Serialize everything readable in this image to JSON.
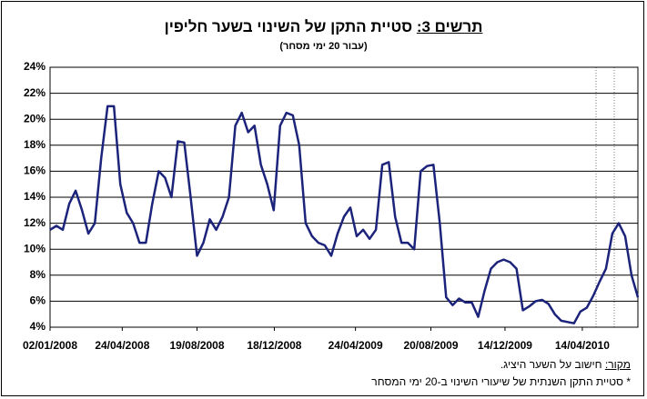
{
  "chart_data": {
    "type": "line",
    "title_label": "תרשים 3:",
    "title": "סטיית התקן של השינוי בשער חליפין",
    "subtitle": "(עבור 20 ימי מסחר)",
    "source_label": "מקור:",
    "source": "חישוב על השער היציג.",
    "footnote": "* סטיית התקן השנתית של שיעורי השינוי ב-20 ימי המסחר",
    "x": [
      "02/01/2008",
      "12/01/2008",
      "22/01/2008",
      "01/02/2008",
      "11/02/2008",
      "21/02/2008",
      "02/03/2008",
      "12/03/2008",
      "22/03/2008",
      "01/04/2008",
      "11/04/2008",
      "21/04/2008",
      "01/05/2008",
      "11/05/2008",
      "21/05/2008",
      "31/05/2008",
      "10/06/2008",
      "20/06/2008",
      "30/06/2008",
      "10/07/2008",
      "20/07/2008",
      "30/07/2008",
      "09/08/2008",
      "19/08/2008",
      "29/08/2008",
      "08/09/2008",
      "18/09/2008",
      "28/09/2008",
      "08/10/2008",
      "18/10/2008",
      "28/10/2008",
      "07/11/2008",
      "17/11/2008",
      "27/11/2008",
      "07/12/2008",
      "17/12/2008",
      "27/12/2008",
      "06/01/2009",
      "16/01/2009",
      "26/01/2009",
      "05/02/2009",
      "15/02/2009",
      "25/02/2009",
      "07/03/2009",
      "17/03/2009",
      "27/03/2009",
      "06/04/2009",
      "16/04/2009",
      "26/04/2009",
      "06/05/2009",
      "16/05/2009",
      "26/05/2009",
      "05/06/2009",
      "15/06/2009",
      "25/06/2009",
      "05/07/2009",
      "15/07/2009",
      "25/07/2009",
      "04/08/2009",
      "14/08/2009",
      "24/08/2009",
      "03/09/2009",
      "13/09/2009",
      "23/09/2009",
      "03/10/2009",
      "13/10/2009",
      "23/10/2009",
      "02/11/2009",
      "12/11/2009",
      "22/11/2009",
      "02/12/2009",
      "12/12/2009",
      "22/12/2009",
      "01/01/2010",
      "11/01/2010",
      "21/01/2010",
      "31/01/2010",
      "10/02/2010",
      "20/02/2010",
      "02/03/2010",
      "12/03/2010",
      "22/03/2010",
      "01/04/2010",
      "11/04/2010",
      "21/04/2010",
      "01/05/2010",
      "11/05/2010",
      "21/05/2010",
      "31/05/2010",
      "10/06/2010",
      "20/06/2010",
      "30/06/2010",
      "10/07/2010"
    ],
    "series": [
      {
        "color": "#1c237a",
        "values": [
          11.5,
          11.8,
          11.5,
          13.5,
          14.5,
          13,
          11.2,
          12,
          17,
          21,
          21,
          15,
          12.8,
          12,
          10.5,
          10.5,
          13.5,
          16,
          15.5,
          14,
          18.3,
          18.2,
          14,
          9.5,
          10.5,
          12.3,
          11.5,
          12.5,
          14,
          19.5,
          20.5,
          19,
          19.5,
          16.5,
          15,
          13,
          19.5,
          20.5,
          20.3,
          18,
          12,
          11,
          10.5,
          10.3,
          9.5,
          11.2,
          12.5,
          13.2,
          11,
          11.5,
          10.8,
          11.5,
          16.5,
          16.7,
          12.5,
          10.5,
          10.5,
          10,
          16,
          16.4,
          16.5,
          12,
          6.3,
          5.7,
          6.2,
          5.9,
          5.9,
          4.8,
          6.8,
          8.5,
          9,
          9.2,
          9,
          8.5,
          5.3,
          5.6,
          6,
          6.1,
          5.8,
          5,
          4.5,
          4.4,
          4.3,
          5.2,
          5.5,
          6.4,
          7.5,
          8.5,
          11.2,
          12,
          11,
          8,
          6.3
        ]
      }
    ],
    "xlim": [
      "02/01/2008",
      "10/07/2010"
    ],
    "xticks": [
      "02/01/2008",
      "24/04/2008",
      "19/08/2008",
      "18/12/2008",
      "24/04/2009",
      "20/08/2009",
      "14/12/2009",
      "14/04/2010"
    ],
    "ylim": [
      4,
      24
    ],
    "yticks": [
      {
        "value": 4,
        "label": "4%"
      },
      {
        "value": 6,
        "label": "6%"
      },
      {
        "value": 8,
        "label": "8%"
      },
      {
        "value": 10,
        "label": "10%"
      },
      {
        "value": 12,
        "label": "12%"
      },
      {
        "value": 14,
        "label": "14%"
      },
      {
        "value": 16,
        "label": "16%"
      },
      {
        "value": 18,
        "label": "18%"
      },
      {
        "value": 20,
        "label": "20%"
      },
      {
        "value": 22,
        "label": "22%"
      },
      {
        "value": 24,
        "label": "24%"
      }
    ],
    "grid": true
  }
}
